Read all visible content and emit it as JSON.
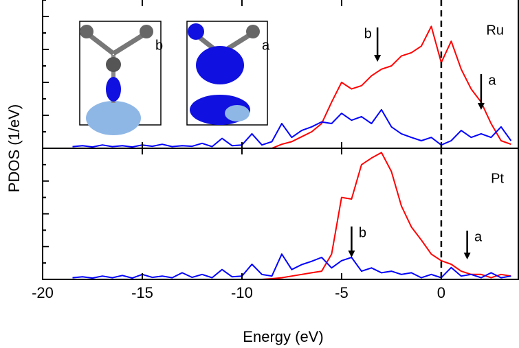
{
  "chart_data": [
    {
      "type": "line",
      "ylabel": "PDOS (1/eV)",
      "label": "Ru",
      "x": [
        -18.5,
        -18,
        -17.5,
        -17,
        -16.5,
        -16,
        -15.5,
        -15,
        -14.5,
        -14,
        -13.5,
        -13,
        -12.5,
        -12,
        -11.5,
        -11,
        -10.5,
        -10,
        -9.5,
        -9,
        -8.5,
        -8,
        -7.5,
        -7,
        -6.5,
        -6,
        -5.5,
        -5,
        -4.5,
        -4,
        -3.5,
        -3,
        -2.5,
        -2,
        -1.5,
        -1,
        -0.5,
        0,
        0.5,
        1,
        1.5,
        2,
        2.5,
        3,
        3.5
      ],
      "series": [
        {
          "color": "#ff0000",
          "values": [
            0,
            0,
            0,
            0,
            0,
            0,
            0,
            0,
            0,
            0,
            0,
            0,
            0,
            0,
            0,
            0,
            0,
            0,
            0,
            0,
            0,
            0.12,
            0.2,
            0.35,
            0.5,
            0.75,
            1.4,
            2.0,
            1.8,
            1.9,
            2.2,
            2.4,
            2.5,
            2.8,
            2.9,
            3.1,
            3.7,
            2.6,
            3.25,
            2.4,
            1.8,
            1.4,
            0.75,
            0.23,
            0.12
          ]
        },
        {
          "color": "#0000ff",
          "values": [
            0.05,
            0.08,
            0.04,
            0.1,
            0.05,
            0.08,
            0.04,
            0.1,
            0.06,
            0.12,
            0.05,
            0.08,
            0.06,
            0.15,
            0.05,
            0.3,
            0.08,
            0.1,
            0.44,
            0.1,
            0.2,
            0.75,
            0.33,
            0.54,
            0.65,
            0.8,
            0.75,
            1.06,
            0.85,
            0.96,
            0.75,
            1.17,
            0.65,
            0.44,
            0.33,
            0.23,
            0.33,
            0.1,
            0.23,
            0.54,
            0.33,
            0.44,
            0.33,
            0.65,
            0.23
          ]
        }
      ],
      "xlim": [
        -20,
        3.9
      ],
      "xticks": [
        -20,
        -15,
        -10,
        -5,
        0
      ],
      "ylim": [
        0,
        4.5
      ],
      "yticks": [
        0.5,
        1,
        1.5,
        2,
        2.5,
        3,
        3.5,
        4,
        4.5
      ],
      "vline": 0,
      "annotations": [
        {
          "text": "b",
          "x": -3.2
        },
        {
          "text": "a",
          "x": 2
        }
      ],
      "insets": [
        {
          "label": "b"
        },
        {
          "label": "a"
        }
      ]
    },
    {
      "type": "line",
      "label": "Pt",
      "xlabel": "Energy (eV)",
      "x": [
        -18.5,
        -18,
        -17.5,
        -17,
        -16.5,
        -16,
        -15.5,
        -15,
        -14.5,
        -14,
        -13.5,
        -13,
        -12.5,
        -12,
        -11.5,
        -11,
        -10.5,
        -10,
        -9.5,
        -9,
        -8.5,
        -8,
        -7.5,
        -7,
        -6.5,
        -6,
        -5.5,
        -5,
        -4.5,
        -4,
        -3.5,
        -3,
        -2.5,
        -2,
        -1.5,
        -1,
        -0.5,
        0,
        0.5,
        1,
        1.5,
        2,
        2.5,
        3,
        3.5
      ],
      "series": [
        {
          "color": "#ff0000",
          "values": [
            0,
            0,
            0,
            0,
            0,
            0,
            0,
            0,
            0,
            0,
            0,
            0,
            0,
            0,
            0,
            0,
            0,
            0,
            0,
            0,
            0.02,
            0.05,
            0.1,
            0.15,
            0.2,
            0.25,
            0.77,
            2.5,
            2.45,
            3.5,
            3.7,
            3.87,
            3.29,
            2.24,
            1.6,
            1.2,
            0.77,
            0.57,
            0.46,
            0.25,
            0.15,
            0.15,
            0.05,
            0.15,
            0.1
          ]
        },
        {
          "color": "#0000ff",
          "values": [
            0.05,
            0.08,
            0.04,
            0.1,
            0.05,
            0.12,
            0.04,
            0.15,
            0.06,
            0.1,
            0.05,
            0.2,
            0.06,
            0.15,
            0.05,
            0.3,
            0.08,
            0.1,
            0.46,
            0.15,
            0.1,
            0.77,
            0.3,
            0.45,
            0.55,
            0.67,
            0.35,
            0.57,
            0.67,
            0.25,
            0.35,
            0.2,
            0.25,
            0.15,
            0.2,
            0.05,
            0.15,
            0.05,
            0.36,
            0.1,
            0.15,
            0.05,
            0.2,
            0.05,
            0.1
          ]
        }
      ],
      "xlim": [
        -20,
        3.9
      ],
      "xticks": [
        -20,
        -15,
        -10,
        -5,
        0
      ],
      "ylim": [
        0,
        4
      ],
      "yticks": [
        0.5,
        1,
        1.5,
        2,
        2.5,
        3,
        3.5
      ],
      "vline": 0,
      "annotations": [
        {
          "text": "b",
          "x": -4.5
        },
        {
          "text": "a",
          "x": 1.3
        }
      ]
    }
  ]
}
